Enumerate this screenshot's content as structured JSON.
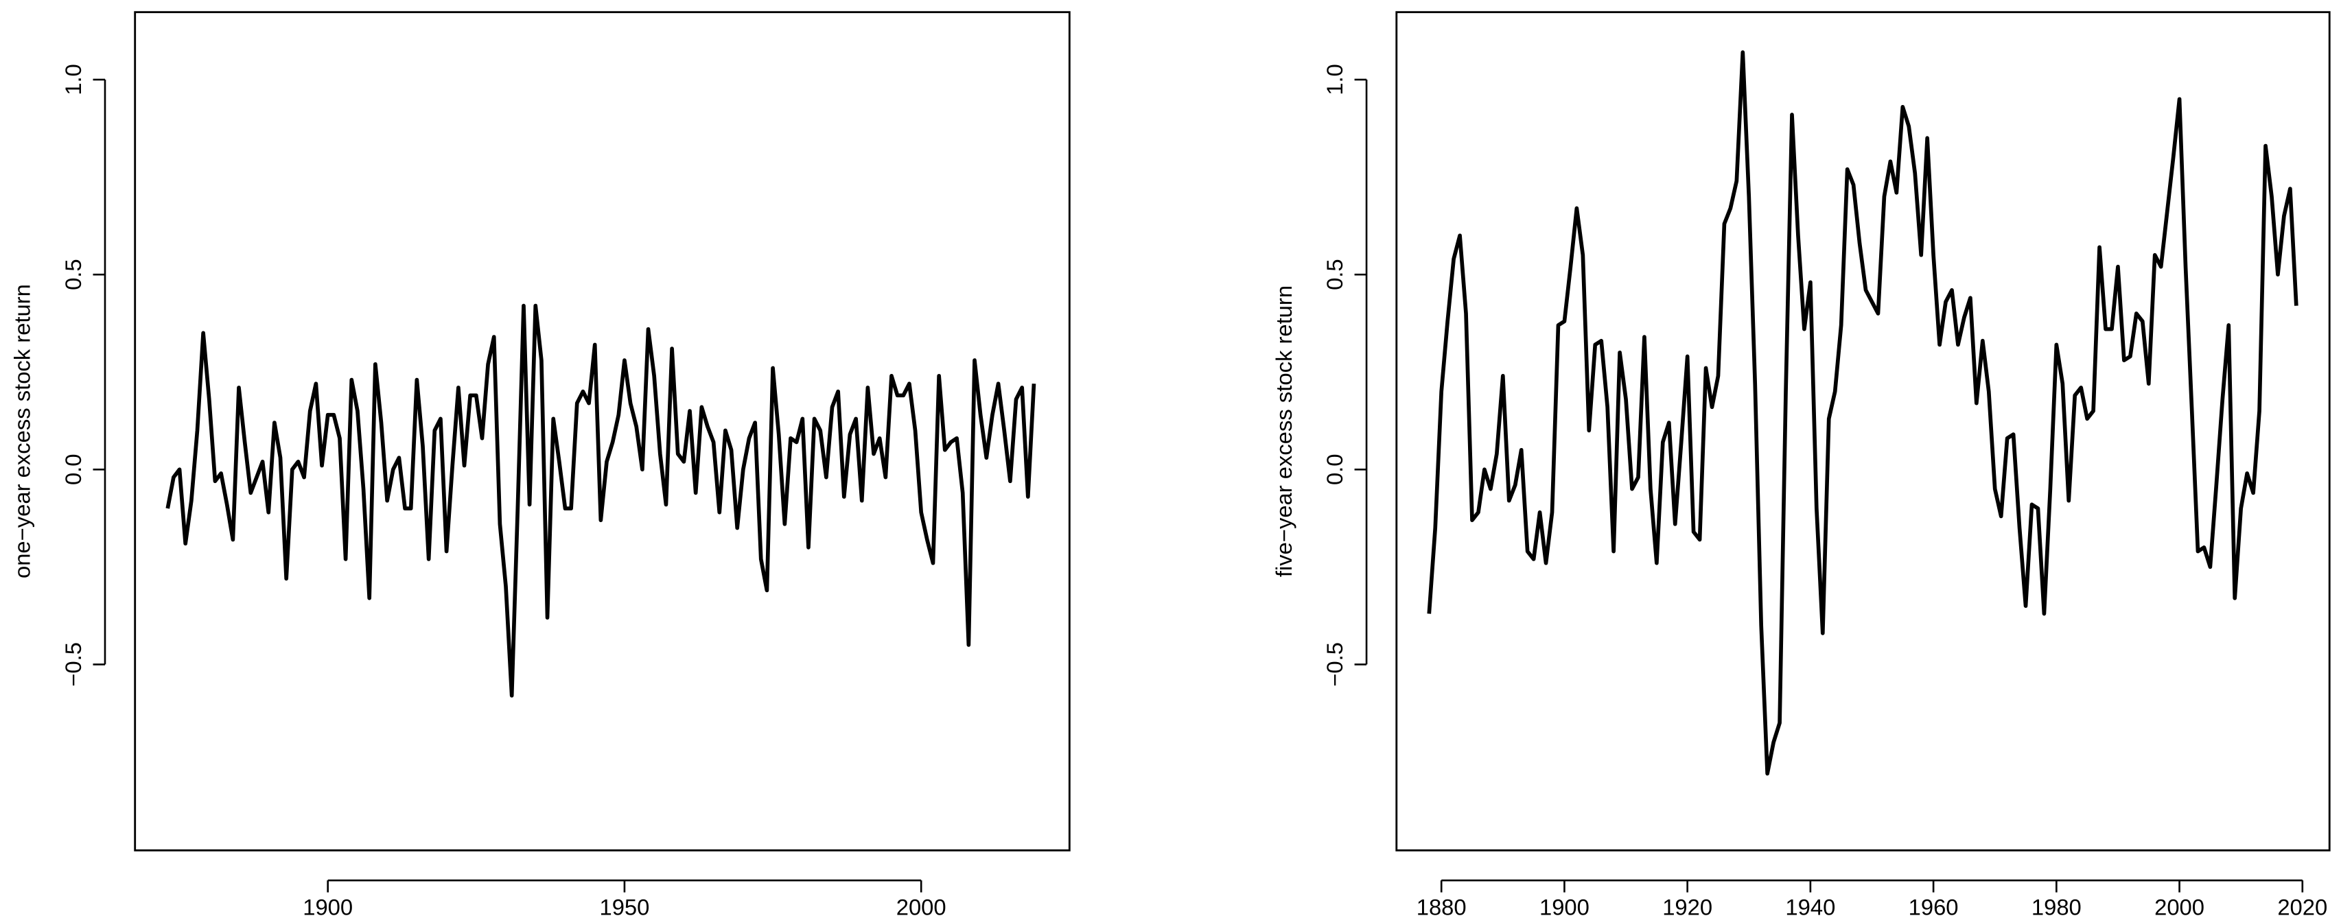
{
  "chart_data": [
    {
      "type": "line",
      "ylabel": "one−year excess stock return",
      "color": "#000000",
      "x": [
        1873,
        1874,
        1875,
        1876,
        1877,
        1878,
        1879,
        1880,
        1881,
        1882,
        1883,
        1884,
        1885,
        1886,
        1887,
        1888,
        1889,
        1890,
        1891,
        1892,
        1893,
        1894,
        1895,
        1896,
        1897,
        1898,
        1899,
        1900,
        1901,
        1902,
        1903,
        1904,
        1905,
        1906,
        1907,
        1908,
        1909,
        1910,
        1911,
        1912,
        1913,
        1914,
        1915,
        1916,
        1917,
        1918,
        1919,
        1920,
        1921,
        1922,
        1923,
        1924,
        1925,
        1926,
        1927,
        1928,
        1929,
        1930,
        1931,
        1932,
        1933,
        1934,
        1935,
        1936,
        1937,
        1938,
        1939,
        1940,
        1941,
        1942,
        1943,
        1944,
        1945,
        1946,
        1947,
        1948,
        1949,
        1950,
        1951,
        1952,
        1953,
        1954,
        1955,
        1956,
        1957,
        1958,
        1959,
        1960,
        1961,
        1962,
        1963,
        1964,
        1965,
        1966,
        1967,
        1968,
        1969,
        1970,
        1971,
        1972,
        1973,
        1974,
        1975,
        1976,
        1977,
        1978,
        1979,
        1980,
        1981,
        1982,
        1983,
        1984,
        1985,
        1986,
        1987,
        1988,
        1989,
        1990,
        1991,
        1992,
        1993,
        1994,
        1995,
        1996,
        1997,
        1998,
        1999,
        2000,
        2001,
        2002,
        2003,
        2004,
        2005,
        2006,
        2007,
        2008,
        2009,
        2010,
        2011,
        2012,
        2013,
        2014,
        2015,
        2016,
        2017,
        2018,
        2019
      ],
      "values": [
        -0.1,
        -0.02,
        0.0,
        -0.19,
        -0.08,
        0.1,
        0.35,
        0.18,
        -0.03,
        -0.01,
        -0.09,
        -0.18,
        0.21,
        0.07,
        -0.06,
        -0.02,
        0.02,
        -0.11,
        0.12,
        0.03,
        -0.28,
        0.0,
        0.02,
        -0.02,
        0.15,
        0.22,
        0.01,
        0.14,
        0.14,
        0.08,
        -0.23,
        0.23,
        0.15,
        -0.05,
        -0.33,
        0.27,
        0.12,
        -0.08,
        0.0,
        0.03,
        -0.1,
        -0.1,
        0.23,
        0.06,
        -0.23,
        0.1,
        0.13,
        -0.21,
        0.01,
        0.21,
        0.01,
        0.19,
        0.19,
        0.08,
        0.27,
        0.34,
        -0.14,
        -0.3,
        -0.58,
        -0.1,
        0.42,
        -0.09,
        0.42,
        0.28,
        -0.38,
        0.13,
        0.02,
        -0.1,
        -0.1,
        0.17,
        0.2,
        0.17,
        0.32,
        -0.13,
        0.02,
        0.07,
        0.14,
        0.28,
        0.17,
        0.11,
        0.0,
        0.36,
        0.24,
        0.04,
        -0.09,
        0.31,
        0.04,
        0.02,
        0.15,
        -0.06,
        0.16,
        0.11,
        0.07,
        -0.11,
        0.1,
        0.05,
        -0.15,
        0.0,
        0.08,
        0.12,
        -0.23,
        -0.31,
        0.26,
        0.09,
        -0.14,
        0.08,
        0.07,
        0.13,
        -0.2,
        0.13,
        0.1,
        -0.02,
        0.16,
        0.2,
        -0.07,
        0.09,
        0.13,
        -0.08,
        0.21,
        0.04,
        0.08,
        -0.02,
        0.24,
        0.19,
        0.19,
        0.22,
        0.1,
        -0.11,
        -0.18,
        -0.24,
        0.24,
        0.05,
        0.07,
        0.08,
        -0.06,
        -0.45,
        0.28,
        0.14,
        0.03,
        0.14,
        0.22,
        0.1,
        -0.03,
        0.18,
        0.21,
        -0.07,
        0.22
      ],
      "xlim": [
        1867.5,
        2025
      ],
      "xticks": [
        1900,
        1950,
        2000
      ],
      "ylim": [
        -0.977,
        1.173
      ],
      "yticks": [
        {
          "value": -0.5,
          "label": "−0.5"
        },
        {
          "value": 0,
          "label": "0.0"
        },
        0.5,
        {
          "value": 1.0,
          "label": "1.0"
        }
      ]
    },
    {
      "type": "line",
      "ylabel": "five−year excess stock return",
      "color": "#000000",
      "x": [
        1878,
        1879,
        1880,
        1881,
        1882,
        1883,
        1884,
        1885,
        1886,
        1887,
        1888,
        1889,
        1890,
        1891,
        1892,
        1893,
        1894,
        1895,
        1896,
        1897,
        1898,
        1899,
        1900,
        1901,
        1902,
        1903,
        1904,
        1905,
        1906,
        1907,
        1908,
        1909,
        1910,
        1911,
        1912,
        1913,
        1914,
        1915,
        1916,
        1917,
        1918,
        1919,
        1920,
        1921,
        1922,
        1923,
        1924,
        1925,
        1926,
        1927,
        1928,
        1929,
        1930,
        1931,
        1932,
        1933,
        1934,
        1935,
        1936,
        1937,
        1938,
        1939,
        1940,
        1941,
        1942,
        1943,
        1944,
        1945,
        1946,
        1947,
        1948,
        1949,
        1950,
        1951,
        1952,
        1953,
        1954,
        1955,
        1956,
        1957,
        1958,
        1959,
        1960,
        1961,
        1962,
        1963,
        1964,
        1965,
        1966,
        1967,
        1968,
        1969,
        1970,
        1971,
        1972,
        1973,
        1974,
        1975,
        1976,
        1977,
        1978,
        1979,
        1980,
        1981,
        1982,
        1983,
        1984,
        1985,
        1986,
        1987,
        1988,
        1989,
        1990,
        1991,
        1992,
        1993,
        1994,
        1995,
        1996,
        1997,
        1998,
        1999,
        2000,
        2001,
        2002,
        2003,
        2004,
        2005,
        2006,
        2007,
        2008,
        2009,
        2010,
        2011,
        2012,
        2013,
        2014,
        2015,
        2016,
        2017,
        2018,
        2019
      ],
      "values": [
        -0.37,
        -0.15,
        0.2,
        0.38,
        0.54,
        0.6,
        0.4,
        -0.13,
        -0.11,
        0.0,
        -0.05,
        0.04,
        0.24,
        -0.08,
        -0.04,
        0.05,
        -0.21,
        -0.23,
        -0.11,
        -0.24,
        -0.11,
        0.37,
        0.38,
        0.52,
        0.67,
        0.55,
        0.1,
        0.32,
        0.33,
        0.16,
        -0.21,
        0.3,
        0.18,
        -0.05,
        -0.02,
        0.34,
        -0.05,
        -0.24,
        0.07,
        0.12,
        -0.14,
        0.07,
        0.29,
        -0.16,
        -0.18,
        0.26,
        0.16,
        0.24,
        0.63,
        0.67,
        0.74,
        1.07,
        0.7,
        0.22,
        -0.4,
        -0.78,
        -0.7,
        -0.65,
        0.2,
        0.91,
        0.6,
        0.36,
        0.48,
        -0.1,
        -0.42,
        0.13,
        0.2,
        0.37,
        0.77,
        0.73,
        0.58,
        0.46,
        0.43,
        0.4,
        0.7,
        0.79,
        0.71,
        0.93,
        0.88,
        0.76,
        0.55,
        0.85,
        0.55,
        0.32,
        0.43,
        0.46,
        0.32,
        0.39,
        0.44,
        0.17,
        0.33,
        0.2,
        -0.05,
        -0.12,
        0.08,
        0.09,
        -0.15,
        -0.35,
        -0.09,
        -0.1,
        -0.37,
        -0.05,
        0.32,
        0.22,
        -0.08,
        0.19,
        0.21,
        0.13,
        0.15,
        0.57,
        0.36,
        0.36,
        0.52,
        0.28,
        0.29,
        0.4,
        0.38,
        0.22,
        0.55,
        0.52,
        0.66,
        0.8,
        0.95,
        0.52,
        0.16,
        -0.21,
        -0.2,
        -0.25,
        -0.04,
        0.18,
        0.37,
        -0.33,
        -0.1,
        -0.01,
        -0.06,
        0.15,
        0.83,
        0.7,
        0.5,
        0.65,
        0.72,
        0.42
      ],
      "xlim": [
        1872.7,
        2024.4
      ],
      "xticks": [
        1880,
        1900,
        1920,
        1940,
        1960,
        1980,
        2000,
        2020
      ],
      "ylim": [
        -0.977,
        1.173
      ],
      "yticks": [
        {
          "value": -0.5,
          "label": "−0.5"
        },
        {
          "value": 0,
          "label": "0.0"
        },
        0.5,
        {
          "value": 1.0,
          "label": "1.0"
        }
      ]
    }
  ]
}
